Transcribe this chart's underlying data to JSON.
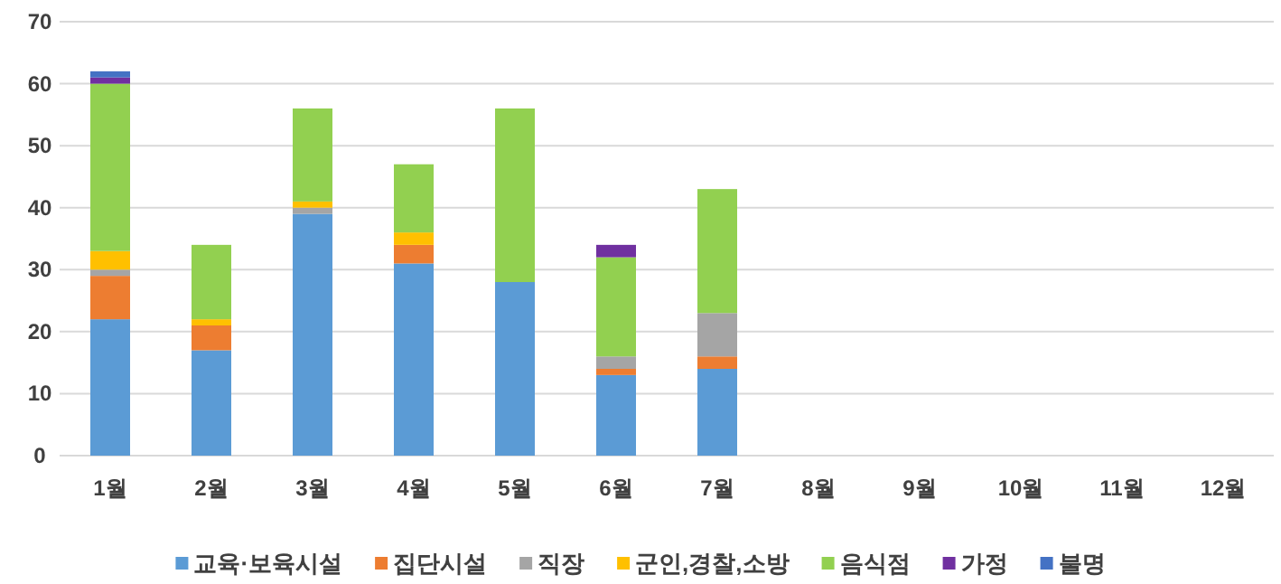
{
  "chart_data": {
    "type": "bar",
    "stacked": true,
    "categories": [
      "1월",
      "2월",
      "3월",
      "4월",
      "5월",
      "6월",
      "7월",
      "8월",
      "9월",
      "10월",
      "11월",
      "12월"
    ],
    "series": [
      {
        "name": "교육·보육시설",
        "color": "#5b9bd5",
        "values": [
          22,
          17,
          39,
          31,
          28,
          13,
          14,
          null,
          null,
          null,
          null,
          null
        ]
      },
      {
        "name": "집단시설",
        "color": "#ed7d31",
        "values": [
          7,
          4,
          0,
          3,
          0,
          1,
          2,
          null,
          null,
          null,
          null,
          null
        ]
      },
      {
        "name": "직장",
        "color": "#a5a5a5",
        "values": [
          1,
          0,
          1,
          0,
          0,
          2,
          7,
          null,
          null,
          null,
          null,
          null
        ]
      },
      {
        "name": "군인,경찰,소방",
        "color": "#ffc000",
        "values": [
          3,
          1,
          1,
          2,
          0,
          0,
          0,
          null,
          null,
          null,
          null,
          null
        ]
      },
      {
        "name": "음식점",
        "color": "#92d050",
        "values": [
          27,
          12,
          15,
          11,
          28,
          16,
          20,
          null,
          null,
          null,
          null,
          null
        ]
      },
      {
        "name": "가정",
        "color": "#7030a0",
        "values": [
          1,
          0,
          0,
          0,
          0,
          2,
          0,
          null,
          null,
          null,
          null,
          null
        ]
      },
      {
        "name": "불명",
        "color": "#4472c4",
        "values": [
          1,
          0,
          0,
          0,
          0,
          0,
          0,
          null,
          null,
          null,
          null,
          null
        ]
      }
    ],
    "ylim": [
      0,
      70
    ],
    "yticks": [
      0,
      10,
      20,
      30,
      40,
      50,
      60,
      70
    ],
    "grid": "y",
    "legend": "bottom"
  }
}
